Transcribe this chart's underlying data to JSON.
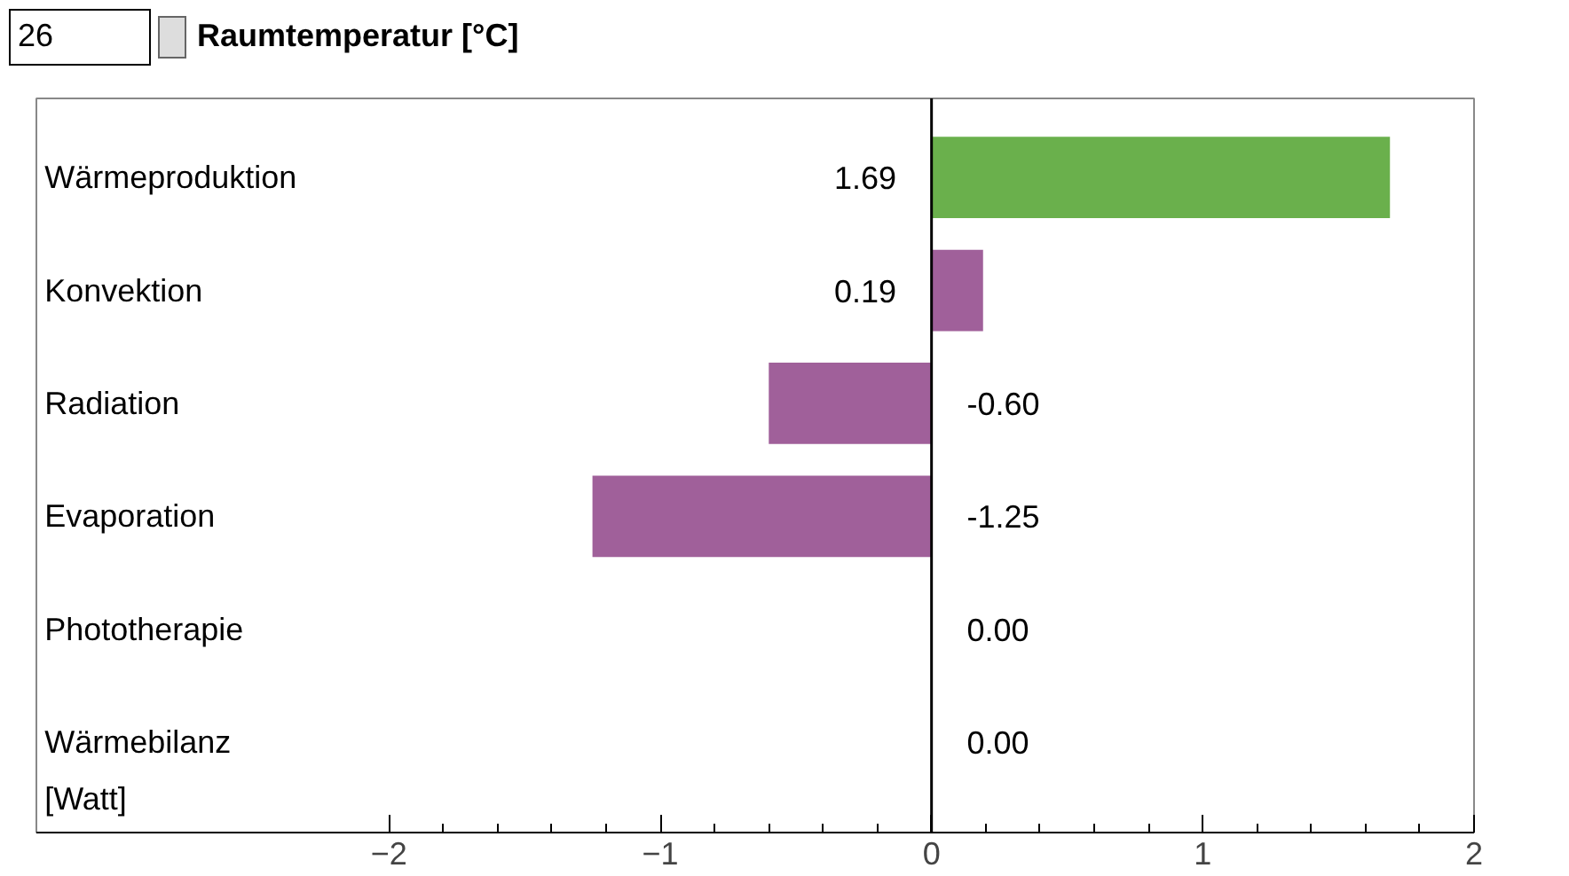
{
  "chart_data": {
    "type": "bar",
    "orientation": "horizontal",
    "title": "Raumtemperatur [°C]",
    "annotations": [
      "26"
    ],
    "xlabel": "[Watt]",
    "categories": [
      "Wärmeproduktion",
      "Konvektion",
      "Radiation",
      "Evaporation",
      "Phototherapie",
      "Wärmebilanz"
    ],
    "values": [
      1.69,
      0.19,
      -0.6,
      -1.25,
      0.0,
      0.0
    ],
    "colors": [
      "#6ab04c",
      "#a0609a",
      "#a0609a",
      "#a0609a",
      "#a0609a",
      "#a0609a"
    ],
    "value_labels": [
      "1.69",
      "0.19",
      "-0.60",
      "-1.25",
      "0.00",
      "0.00"
    ],
    "xlim": [
      -3.3,
      2.0
    ],
    "xticks": [
      -2,
      -1,
      0,
      1,
      2
    ],
    "ref_lines": [
      {
        "axis": "x",
        "value": 0,
        "color": "#000000"
      }
    ],
    "grid": false
  }
}
